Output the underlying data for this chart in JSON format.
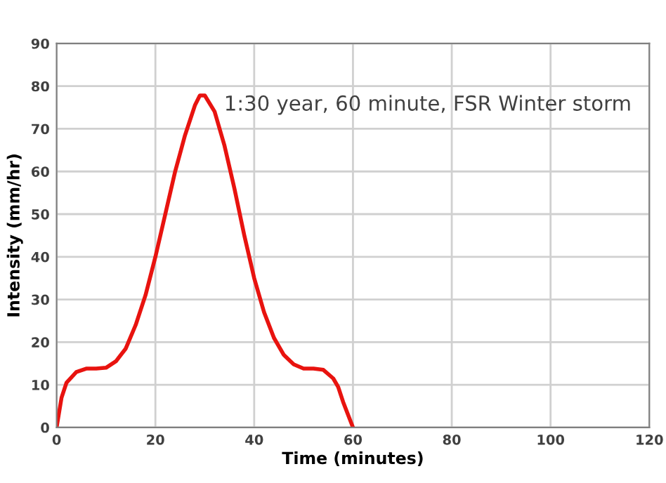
{
  "chart_data": {
    "type": "line",
    "xlabel": "Time (minutes)",
    "ylabel": "Intensity (mm/hr)",
    "annotations": [
      "1:30 year, 60 minute, FSR Winter storm"
    ],
    "x": [
      0,
      1,
      2,
      4,
      6,
      8,
      10,
      12,
      14,
      16,
      18,
      20,
      22,
      24,
      26,
      28,
      29,
      30,
      32,
      34,
      36,
      38,
      40,
      42,
      44,
      46,
      48,
      50,
      52,
      54,
      56,
      57,
      58,
      59,
      60
    ],
    "series": [
      {
        "color": "#e8130f",
        "values": [
          0,
          7,
          10.5,
          13,
          13.8,
          13.8,
          14,
          15.5,
          18.5,
          24,
          31,
          40,
          50,
          60,
          68.5,
          75.5,
          77.8,
          77.8,
          74,
          66,
          56,
          45,
          35,
          27,
          21,
          17,
          14.8,
          13.8,
          13.8,
          13.5,
          11.5,
          9.5,
          6,
          3,
          0
        ]
      }
    ],
    "xlim": [
      0,
      120
    ],
    "xticks": [
      0,
      20,
      40,
      60,
      80,
      100,
      120
    ],
    "ylim": [
      0,
      90
    ],
    "yticks": [
      0,
      10,
      20,
      30,
      40,
      50,
      60,
      70,
      80,
      90
    ],
    "grid": true,
    "legend": false,
    "marker": "none",
    "line_style": "solid"
  }
}
